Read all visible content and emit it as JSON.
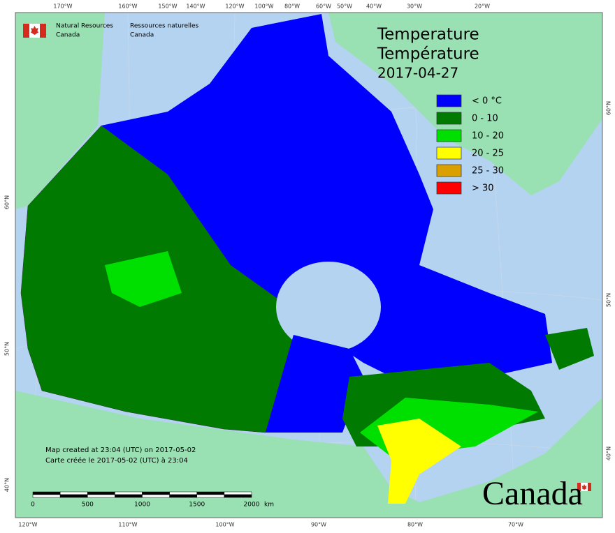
{
  "agency": {
    "en": [
      "Natural Resources",
      "Canada"
    ],
    "fr": [
      "Ressources naturelles",
      "Canada"
    ]
  },
  "title": [
    "Temperature",
    "Température",
    "2017-04-27"
  ],
  "legend": [
    {
      "label": "< 0 °C",
      "color": "#0000ff"
    },
    {
      "label": "0 - 10",
      "color": "#007a00"
    },
    {
      "label": "10 - 20",
      "color": "#00e000"
    },
    {
      "label": "20 - 25",
      "color": "#ffff00"
    },
    {
      "label": "25 - 30",
      "color": "#d9a000"
    },
    {
      "label": "> 30",
      "color": "#ff0000"
    }
  ],
  "credits": [
    "Map created at 23:04 (UTC) on 2017-05-02",
    "Carte créée le 2017-05-02 (UTC) à 23:04"
  ],
  "scale": {
    "ticks": [
      0,
      500,
      1000,
      1500,
      2000
    ],
    "unit": "km"
  },
  "top_labels": [
    "170°W",
    "160°W",
    "150°W",
    "140°W",
    "120°W",
    "100°W",
    "80°W",
    "60°W",
    "50°W",
    "40°W",
    "30°W",
    "20°W"
  ],
  "bottom_labels": [
    "120°W",
    "110°W",
    "100°W",
    "90°W",
    "80°W",
    "70°W"
  ],
  "left_labels": [
    "60°N",
    "50°N",
    "40°N"
  ],
  "right_labels": [
    "60°N",
    "50°N",
    "40°N"
  ],
  "wordmark": "Canada"
}
